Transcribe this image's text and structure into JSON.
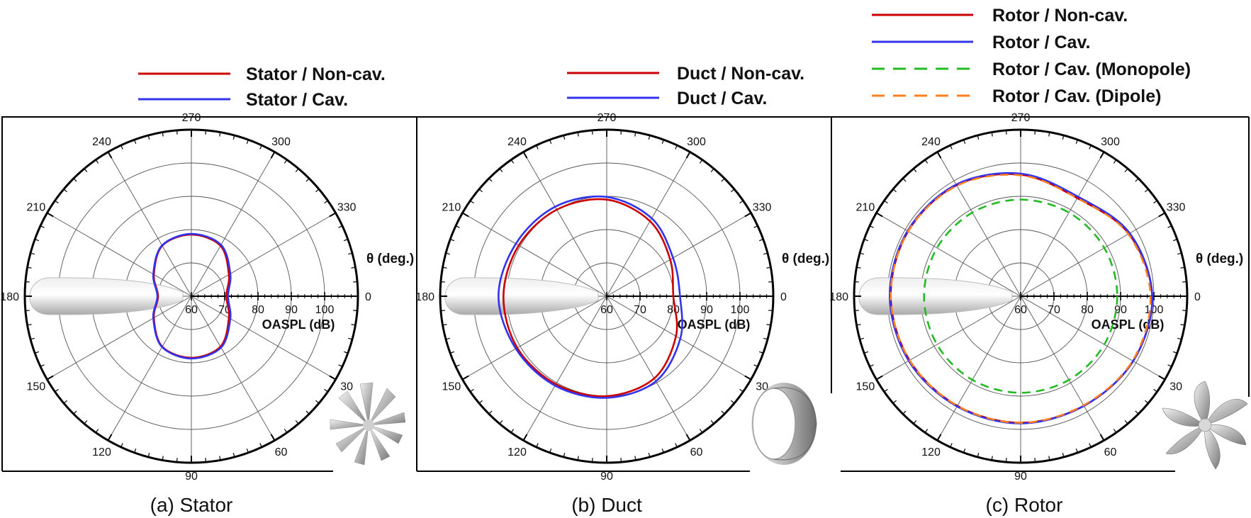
{
  "figure": {
    "captions": [
      "(a)  Stator",
      "(b)  Duct",
      "(c)  Rotor"
    ]
  },
  "chart_data": [
    {
      "type": "polar-line",
      "title": "",
      "theta_label": "θ (deg.)",
      "r_label": "OASPL (dB)",
      "r_range": [
        60,
        110
      ],
      "r_ticks": [
        60,
        70,
        80,
        90,
        100
      ],
      "theta_ticks": [
        0,
        30,
        60,
        90,
        120,
        150,
        180,
        210,
        240,
        270,
        300,
        330
      ],
      "theta_unit": "deg",
      "grid": true,
      "legend": [
        {
          "name": "Stator / Non-cav.",
          "color": "#cc0000",
          "dash": "solid"
        },
        {
          "name": "Stator / Cav.",
          "color": "#3333ee",
          "dash": "solid"
        }
      ],
      "series": [
        {
          "name": "Stator / Non-cav.",
          "color": "#cc0000",
          "dash": "solid",
          "theta": [
            0,
            30,
            60,
            90,
            120,
            150,
            180,
            210,
            240,
            270,
            300,
            330,
            360
          ],
          "r": [
            70.5,
            73.0,
            77.5,
            78.5,
            77.5,
            73.0,
            70.0,
            73.0,
            77.5,
            78.5,
            77.5,
            73.0,
            70.5
          ]
        },
        {
          "name": "Stator / Cav.",
          "color": "#3333ee",
          "dash": "solid",
          "theta": [
            0,
            30,
            60,
            90,
            120,
            150,
            180,
            210,
            240,
            270,
            300,
            330,
            360
          ],
          "r": [
            71.0,
            73.5,
            77.8,
            78.7,
            77.6,
            73.2,
            70.2,
            73.2,
            77.6,
            78.7,
            77.8,
            73.5,
            71.0
          ]
        }
      ]
    },
    {
      "type": "polar-line",
      "title": "",
      "theta_label": "θ (deg.)",
      "r_label": "OASPL (dB)",
      "r_range": [
        60,
        110
      ],
      "r_ticks": [
        60,
        70,
        80,
        90,
        100
      ],
      "theta_ticks": [
        0,
        30,
        60,
        90,
        120,
        150,
        180,
        210,
        240,
        270,
        300,
        330
      ],
      "theta_unit": "deg",
      "grid": true,
      "legend": [
        {
          "name": "Duct / Non-cav.",
          "color": "#cc0000",
          "dash": "solid"
        },
        {
          "name": "Duct / Cav.",
          "color": "#3333ee",
          "dash": "solid"
        }
      ],
      "series": [
        {
          "name": "Duct / Non-cav.",
          "color": "#cc0000",
          "dash": "solid",
          "theta": [
            0,
            30,
            60,
            90,
            120,
            150,
            180,
            210,
            240,
            270,
            300,
            330,
            360
          ],
          "r": [
            80.0,
            84.0,
            88.5,
            90.0,
            90.5,
            91.0,
            91.0,
            90.5,
            90.0,
            89.0,
            86.0,
            82.0,
            80.0
          ]
        },
        {
          "name": "Duct / Cav.",
          "color": "#3333ee",
          "dash": "solid",
          "theta": [
            0,
            30,
            60,
            90,
            120,
            150,
            180,
            210,
            240,
            270,
            300,
            330,
            360
          ],
          "r": [
            82.0,
            85.5,
            89.5,
            90.5,
            91.0,
            91.5,
            92.5,
            91.5,
            91.0,
            89.8,
            87.0,
            83.0,
            82.0
          ]
        }
      ]
    },
    {
      "type": "polar-line",
      "title": "",
      "theta_label": "θ (deg.)",
      "r_label": "OASPL (dB)",
      "r_range": [
        60,
        110
      ],
      "r_ticks": [
        60,
        70,
        80,
        90,
        100
      ],
      "theta_ticks": [
        0,
        30,
        60,
        90,
        120,
        150,
        180,
        210,
        240,
        270,
        300,
        330
      ],
      "theta_unit": "deg",
      "grid": true,
      "legend": [
        {
          "name": "Rotor / Non-cav.",
          "color": "#cc0000",
          "dash": "solid"
        },
        {
          "name": "Rotor / Cav.",
          "color": "#3333ee",
          "dash": "solid"
        },
        {
          "name": "Rotor / Cav. (Monopole)",
          "color": "#22bb22",
          "dash": "dashed"
        },
        {
          "name": "Rotor / Cav. (Dipole)",
          "color": "#ff7f1e",
          "dash": "dashed"
        }
      ],
      "series": [
        {
          "name": "Rotor / Non-cav.",
          "color": "#cc0000",
          "dash": "solid",
          "theta": [
            0,
            30,
            60,
            90,
            120,
            150,
            180,
            210,
            240,
            270,
            300,
            330,
            360
          ],
          "r": [
            99.5,
            99.0,
            98.0,
            98.0,
            98.0,
            98.5,
            99.0,
            99.0,
            98.5,
            96.5,
            94.0,
            97.5,
            99.5
          ]
        },
        {
          "name": "Rotor / Cav.",
          "color": "#3333ee",
          "dash": "solid",
          "theta": [
            0,
            30,
            60,
            90,
            120,
            150,
            180,
            210,
            240,
            270,
            300,
            330,
            360
          ],
          "r": [
            99.5,
            99.0,
            98.0,
            98.2,
            98.2,
            98.8,
            99.3,
            99.2,
            98.7,
            96.8,
            94.5,
            97.8,
            99.5
          ]
        },
        {
          "name": "Rotor / Cav. (Monopole)",
          "color": "#22bb22",
          "dash": "dashed",
          "theta": [
            0,
            30,
            60,
            90,
            120,
            150,
            180,
            210,
            240,
            270,
            300,
            330,
            360
          ],
          "r": [
            89.0,
            89.0,
            89.0,
            89.0,
            89.0,
            89.0,
            89.0,
            89.0,
            89.0,
            89.0,
            89.0,
            89.0,
            89.0
          ]
        },
        {
          "name": "Rotor / Cav. (Dipole)",
          "color": "#ff7f1e",
          "dash": "dashed",
          "theta": [
            0,
            30,
            60,
            90,
            120,
            150,
            180,
            210,
            240,
            270,
            300,
            330,
            360
          ],
          "r": [
            99.0,
            98.8,
            97.8,
            98.0,
            98.0,
            98.5,
            99.0,
            99.0,
            98.3,
            96.3,
            94.0,
            97.3,
            99.0
          ]
        }
      ]
    }
  ]
}
